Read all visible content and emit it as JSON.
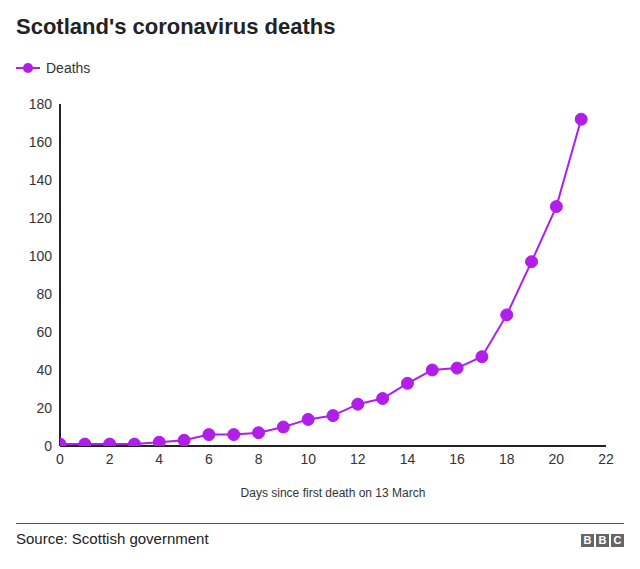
{
  "chart_data": {
    "type": "line",
    "title": "Scotland's coronavirus deaths",
    "x_label": "Days since first death on 13 March",
    "source": "Source: Scottish government",
    "credit": "BBC",
    "x": [
      0,
      1,
      2,
      3,
      4,
      5,
      6,
      7,
      8,
      9,
      10,
      11,
      12,
      13,
      14,
      15,
      16,
      17,
      18,
      19,
      20,
      21
    ],
    "series": [
      {
        "name": "Deaths",
        "color": "#b01ee8",
        "marker": "circle",
        "values": [
          1,
          1,
          1,
          1,
          2,
          3,
          6,
          6,
          7,
          10,
          14,
          16,
          22,
          25,
          33,
          40,
          41,
          47,
          69,
          97,
          126,
          172
        ]
      }
    ],
    "xlim": [
      0,
      22
    ],
    "xticks": [
      0,
      2,
      4,
      6,
      8,
      10,
      12,
      14,
      16,
      18,
      20,
      22
    ],
    "ylim": [
      0,
      180
    ],
    "yticks": [
      0,
      20,
      40,
      60,
      80,
      100,
      120,
      140,
      160,
      180
    ],
    "grid": false,
    "legend": "top-left"
  }
}
